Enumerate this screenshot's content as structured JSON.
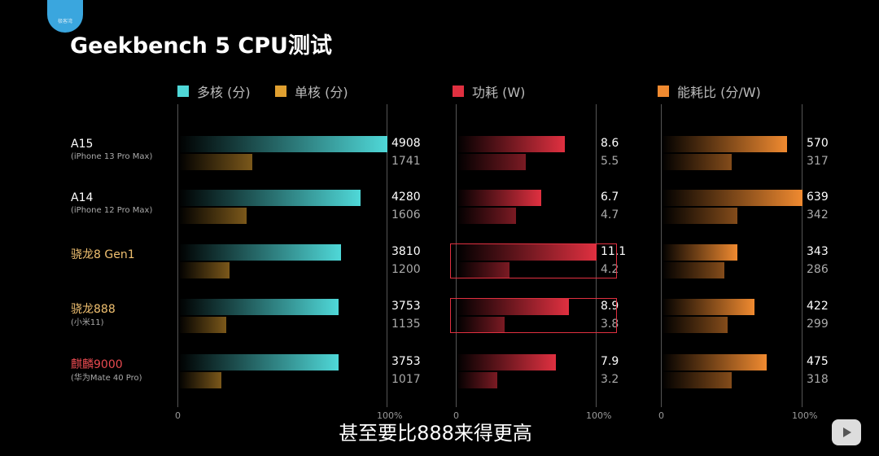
{
  "logo_text": "极客湾",
  "title": "Geekbench 5 CPU测试",
  "subtitle": "甚至要比888来得更高",
  "chart_data": {
    "type": "bar",
    "title": "Geekbench 5 CPU测试",
    "categories": [
      {
        "name": "A15",
        "sub": "(iPhone 13 Pro Max)",
        "color": "#ffffff"
      },
      {
        "name": "A14",
        "sub": "(iPhone 12 Pro Max)",
        "color": "#ffffff"
      },
      {
        "name": "骁龙8 Gen1",
        "sub": "",
        "color": "#f0c070"
      },
      {
        "name": "骁龙888",
        "sub": "(小米11)",
        "color": "#f0c070"
      },
      {
        "name": "麒麟9000",
        "sub": "(华为Mate 40 Pro)",
        "color": "#e84a50"
      }
    ],
    "panels": [
      {
        "series": [
          {
            "name": "多核 (分)",
            "color": "#4fd8d8",
            "values": [
              4908,
              4280,
              3810,
              3753,
              3753
            ]
          },
          {
            "name": "单核 (分)",
            "color": "#e0a030",
            "values": [
              1741,
              1606,
              1200,
              1135,
              1017
            ]
          }
        ],
        "max": 4908,
        "ticks": [
          "0",
          "100%"
        ]
      },
      {
        "series": [
          {
            "name": "功耗 (W)",
            "color": "#e03040",
            "values": [
              8.6,
              6.7,
              11.1,
              8.9,
              7.9
            ]
          },
          {
            "values": [
              5.5,
              4.7,
              4.2,
              3.8,
              3.2
            ],
            "color": "#e03040"
          }
        ],
        "max": 11.1,
        "ticks": [
          "0",
          "100%"
        ],
        "highlight_rows": [
          2,
          3
        ]
      },
      {
        "series": [
          {
            "name": "能耗比 (分/W)",
            "color": "#f08a30",
            "values": [
              570,
              639,
              343,
              422,
              475
            ]
          },
          {
            "values": [
              317,
              342,
              286,
              299,
              318
            ],
            "color": "#f08a30"
          }
        ],
        "max": 639,
        "ticks": [
          "0",
          "100%"
        ]
      }
    ]
  }
}
